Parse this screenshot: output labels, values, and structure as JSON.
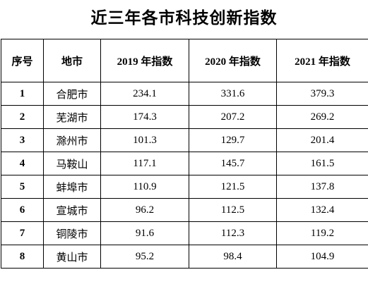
{
  "title": "近三年各市科技创新指数",
  "table": {
    "headers": [
      "序号",
      "地市",
      "2019 年指数",
      "2020 年指数",
      "2021 年指数"
    ],
    "rows": [
      {
        "no": "1",
        "city": "合肥市",
        "y2019": "234.1",
        "y2020": "331.6",
        "y2021": "379.3"
      },
      {
        "no": "2",
        "city": "芜湖市",
        "y2019": "174.3",
        "y2020": "207.2",
        "y2021": "269.2"
      },
      {
        "no": "3",
        "city": "滁州市",
        "y2019": "101.3",
        "y2020": "129.7",
        "y2021": "201.4"
      },
      {
        "no": "4",
        "city": "马鞍山",
        "y2019": "117.1",
        "y2020": "145.7",
        "y2021": "161.5"
      },
      {
        "no": "5",
        "city": "蚌埠市",
        "y2019": "110.9",
        "y2020": "121.5",
        "y2021": "137.8"
      },
      {
        "no": "6",
        "city": "宣城市",
        "y2019": "96.2",
        "y2020": "112.5",
        "y2021": "132.4"
      },
      {
        "no": "7",
        "city": "铜陵市",
        "y2019": "91.6",
        "y2020": "112.3",
        "y2021": "119.2"
      },
      {
        "no": "8",
        "city": "黄山市",
        "y2019": "95.2",
        "y2020": "98.4",
        "y2021": "104.9"
      }
    ]
  }
}
